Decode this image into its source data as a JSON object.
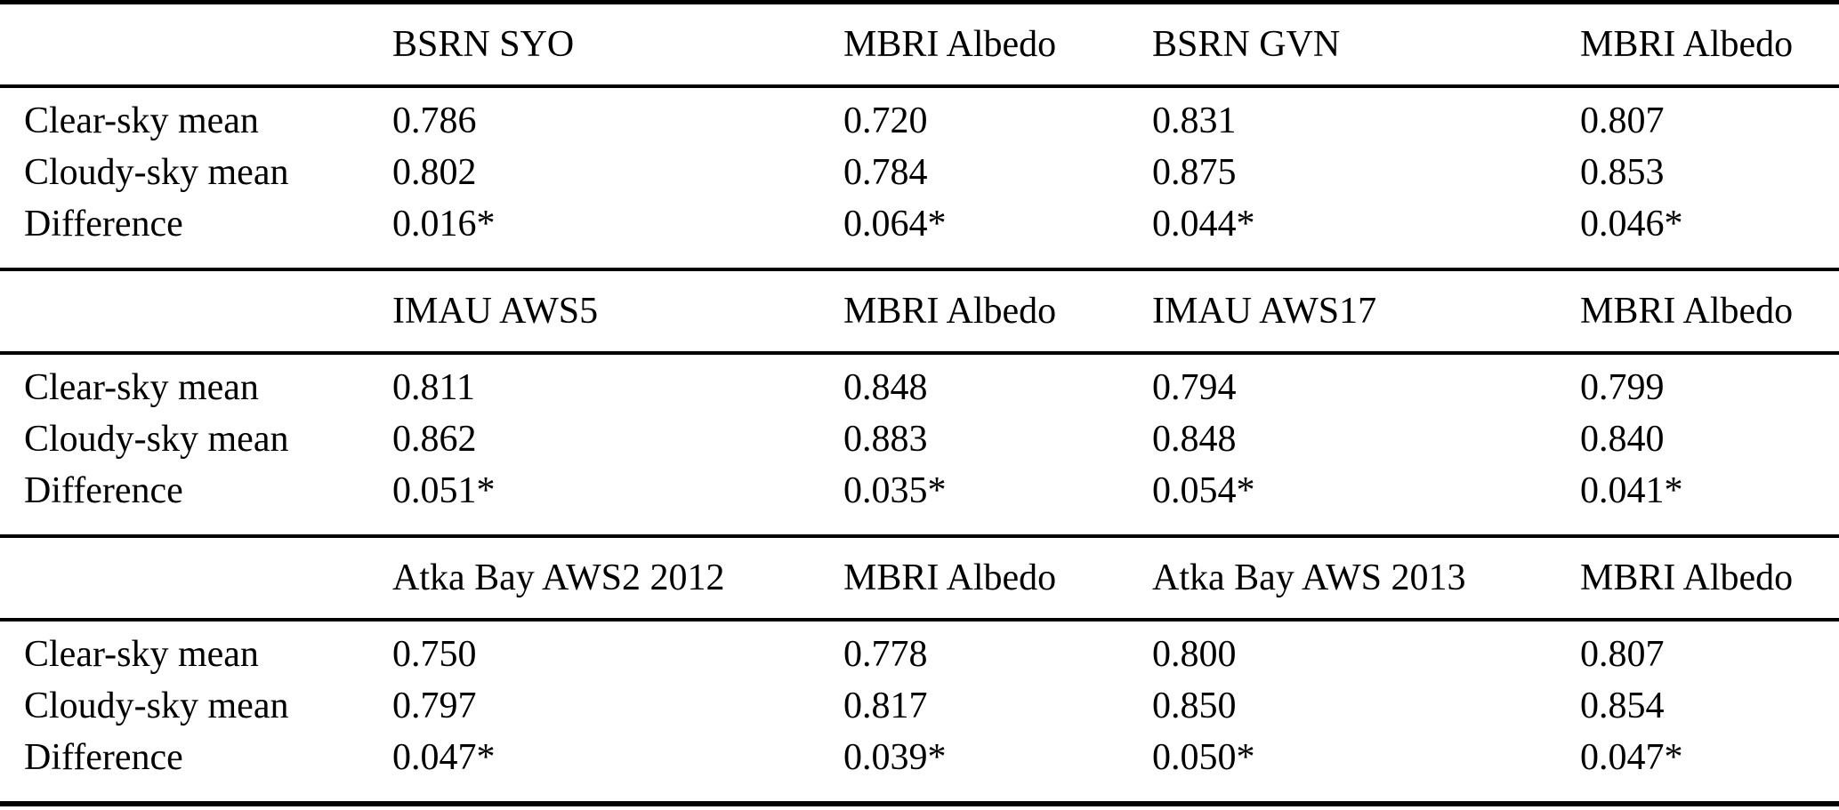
{
  "table": {
    "row_labels": [
      "Clear-sky mean",
      "Cloudy-sky mean",
      "Difference"
    ],
    "colors": {
      "text": "#000000",
      "rule": "#000000",
      "background": "#ffffff"
    },
    "sections": [
      {
        "headers": [
          "BSRN SYO",
          "MBRI Albedo",
          "BSRN GVN",
          "MBRI Albedo"
        ],
        "rows": [
          {
            "label": "Clear-sky mean",
            "values": [
              "0.786",
              "0.720",
              "0.831",
              "0.807"
            ]
          },
          {
            "label": "Cloudy-sky mean",
            "values": [
              "0.802",
              "0.784",
              "0.875",
              "0.853"
            ]
          },
          {
            "label": "Difference",
            "values": [
              "0.016*",
              "0.064*",
              "0.044*",
              "0.046*"
            ]
          }
        ]
      },
      {
        "headers": [
          "IMAU AWS5",
          "MBRI Albedo",
          "IMAU AWS17",
          "MBRI Albedo"
        ],
        "rows": [
          {
            "label": "Clear-sky mean",
            "values": [
              "0.811",
              "0.848",
              "0.794",
              "0.799"
            ]
          },
          {
            "label": "Cloudy-sky mean",
            "values": [
              "0.862",
              "0.883",
              "0.848",
              "0.840"
            ]
          },
          {
            "label": "Difference",
            "values": [
              "0.051*",
              "0.035*",
              "0.054*",
              "0.041*"
            ]
          }
        ]
      },
      {
        "headers": [
          "Atka Bay AWS2 2012",
          "MBRI Albedo",
          "Atka Bay AWS 2013",
          "MBRI Albedo"
        ],
        "rows": [
          {
            "label": "Clear-sky mean",
            "values": [
              "0.750",
              "0.778",
              "0.800",
              "0.807"
            ]
          },
          {
            "label": "Cloudy-sky mean",
            "values": [
              "0.797",
              "0.817",
              "0.850",
              "0.854"
            ]
          },
          {
            "label": "Difference",
            "values": [
              "0.047*",
              "0.039*",
              "0.050*",
              "0.047*"
            ]
          }
        ]
      }
    ]
  }
}
